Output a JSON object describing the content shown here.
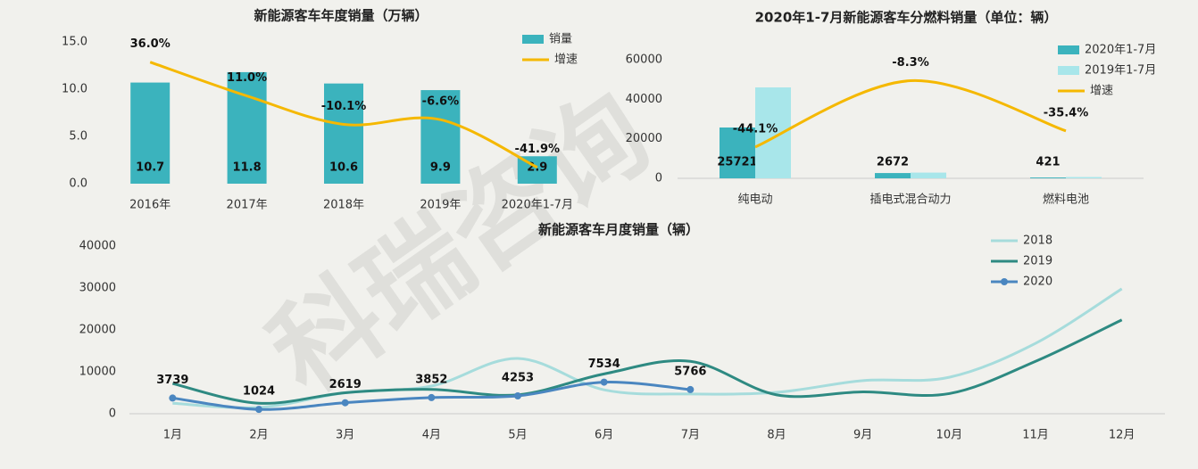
{
  "watermark": "科瑞咨询",
  "chart_data": [
    {
      "type": "bar",
      "title": "新能源客车年度销量（万辆）",
      "categories": [
        "2016年",
        "2017年",
        "2018年",
        "2019年",
        "2020年1-7月"
      ],
      "ylim": [
        0,
        15
      ],
      "yticks": [
        {
          "value": 0,
          "label": "0.0"
        },
        {
          "value": 5,
          "label": "5.0"
        },
        {
          "value": 10,
          "label": "10.0"
        },
        {
          "value": 15,
          "label": "15.0"
        }
      ],
      "y2lim": [
        -54,
        51
      ],
      "legend": "upper right",
      "series": [
        {
          "name": "销量",
          "color": "#3bb3bd",
          "values": [
            10.7,
            11.8,
            10.6,
            9.9,
            2.9
          ],
          "show_labels": true
        },
        {
          "name": "增速",
          "color": "#f5b800",
          "type": "line",
          "axis": "y2",
          "values": [
            36.0,
            11.0,
            -10.1,
            -6.6,
            -41.9
          ],
          "value_labels": [
            "36.0%",
            "11.0%",
            "-10.1%",
            "-6.6%",
            "-41.9%"
          ],
          "show_labels": true
        }
      ]
    },
    {
      "type": "bar",
      "title": "2020年1-7月新能源客车分燃料销量（单位：辆）",
      "categories": [
        "纯电动",
        "插电式混合动力",
        "燃料电池"
      ],
      "ylim": [
        0,
        60000
      ],
      "yticks": [
        0,
        20000,
        40000,
        60000
      ],
      "y2lim": [
        -61,
        3
      ],
      "legend": "upper right",
      "series": [
        {
          "name": "2020年1-7月",
          "color": "#3bb3bd",
          "values": [
            25721,
            2672,
            421
          ],
          "show_labels": true
        },
        {
          "name": "2019年1-7月",
          "color": "#a8e6ea",
          "values": [
            46000,
            2900,
            650
          ]
        },
        {
          "name": "增速",
          "color": "#f5b800",
          "type": "line",
          "axis": "y2",
          "values": [
            -44.1,
            -8.3,
            -35.4
          ],
          "value_labels": [
            "-44.1%",
            "-8.3%",
            "-35.4%"
          ],
          "show_labels": true
        }
      ]
    },
    {
      "type": "line",
      "title": "新能源客车月度销量（辆）",
      "categories": [
        "1月",
        "2月",
        "3月",
        "4月",
        "5月",
        "6月",
        "7月",
        "8月",
        "9月",
        "10月",
        "11月",
        "12月"
      ],
      "ylim": [
        0,
        40000
      ],
      "yticks": [
        0,
        10000,
        20000,
        30000,
        40000
      ],
      "legend": "upper right",
      "series": [
        {
          "name": "2018",
          "color": "#a6dcdc",
          "values": [
            2500,
            1500,
            5000,
            6600,
            13200,
            5700,
            4700,
            5100,
            7900,
            8700,
            16800,
            29800
          ]
        },
        {
          "name": "2019",
          "color": "#2e8a82",
          "values": [
            7200,
            2500,
            5000,
            5800,
            4500,
            9500,
            12500,
            4500,
            5200,
            4800,
            12500,
            22400
          ]
        },
        {
          "name": "2020",
          "color": "#4a86c0",
          "marker": true,
          "show_labels": true,
          "values": [
            3739,
            1024,
            2619,
            3852,
            4253,
            7534,
            5766,
            null,
            null,
            null,
            null,
            null
          ]
        }
      ]
    }
  ]
}
